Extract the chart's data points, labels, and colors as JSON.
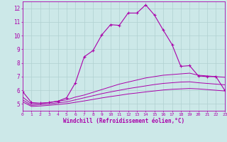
{
  "xlabel": "Windchill (Refroidissement éolien,°C)",
  "xlim": [
    0,
    23
  ],
  "ylim": [
    4.5,
    12.5
  ],
  "yticks": [
    5,
    6,
    7,
    8,
    9,
    10,
    11,
    12
  ],
  "xticks": [
    0,
    1,
    2,
    3,
    4,
    5,
    6,
    7,
    8,
    9,
    10,
    11,
    12,
    13,
    14,
    15,
    16,
    17,
    18,
    19,
    20,
    21,
    22,
    23
  ],
  "bg_color": "#cce8e8",
  "grid_color": "#b0d0d0",
  "line_color": "#aa00aa",
  "line1_x": [
    0,
    1,
    2,
    3,
    4,
    5,
    6,
    7,
    8,
    9,
    10,
    11,
    12,
    13,
    14,
    15,
    16,
    17,
    18,
    19,
    20,
    21,
    22,
    23
  ],
  "line1_y": [
    5.9,
    5.1,
    5.05,
    5.1,
    5.2,
    5.45,
    6.55,
    8.45,
    8.9,
    10.05,
    10.8,
    10.75,
    11.65,
    11.65,
    12.25,
    11.5,
    10.4,
    9.35,
    7.75,
    7.8,
    7.05,
    7.0,
    7.0,
    6.0
  ],
  "line2_x": [
    0,
    1,
    2,
    3,
    4,
    5,
    6,
    7,
    8,
    9,
    10,
    11,
    12,
    13,
    14,
    15,
    16,
    17,
    18,
    19,
    20,
    21,
    22,
    23
  ],
  "line2_y": [
    5.5,
    5.0,
    5.05,
    5.1,
    5.2,
    5.3,
    5.5,
    5.65,
    5.85,
    6.05,
    6.25,
    6.45,
    6.6,
    6.75,
    6.9,
    7.0,
    7.1,
    7.15,
    7.2,
    7.25,
    7.1,
    7.05,
    7.0,
    6.95
  ],
  "line3_x": [
    0,
    1,
    2,
    3,
    4,
    5,
    6,
    7,
    8,
    9,
    10,
    11,
    12,
    13,
    14,
    15,
    16,
    17,
    18,
    19,
    20,
    21,
    22,
    23
  ],
  "line3_y": [
    5.3,
    4.9,
    4.95,
    5.0,
    5.08,
    5.15,
    5.3,
    5.45,
    5.6,
    5.75,
    5.88,
    6.0,
    6.12,
    6.22,
    6.32,
    6.42,
    6.5,
    6.55,
    6.6,
    6.62,
    6.55,
    6.5,
    6.45,
    6.4
  ],
  "line4_x": [
    0,
    1,
    2,
    3,
    4,
    5,
    6,
    7,
    8,
    9,
    10,
    11,
    12,
    13,
    14,
    15,
    16,
    17,
    18,
    19,
    20,
    21,
    22,
    23
  ],
  "line4_y": [
    5.15,
    4.82,
    4.85,
    4.9,
    4.96,
    5.02,
    5.12,
    5.22,
    5.33,
    5.44,
    5.54,
    5.63,
    5.73,
    5.8,
    5.88,
    5.95,
    6.02,
    6.07,
    6.1,
    6.13,
    6.1,
    6.05,
    6.0,
    5.95
  ]
}
